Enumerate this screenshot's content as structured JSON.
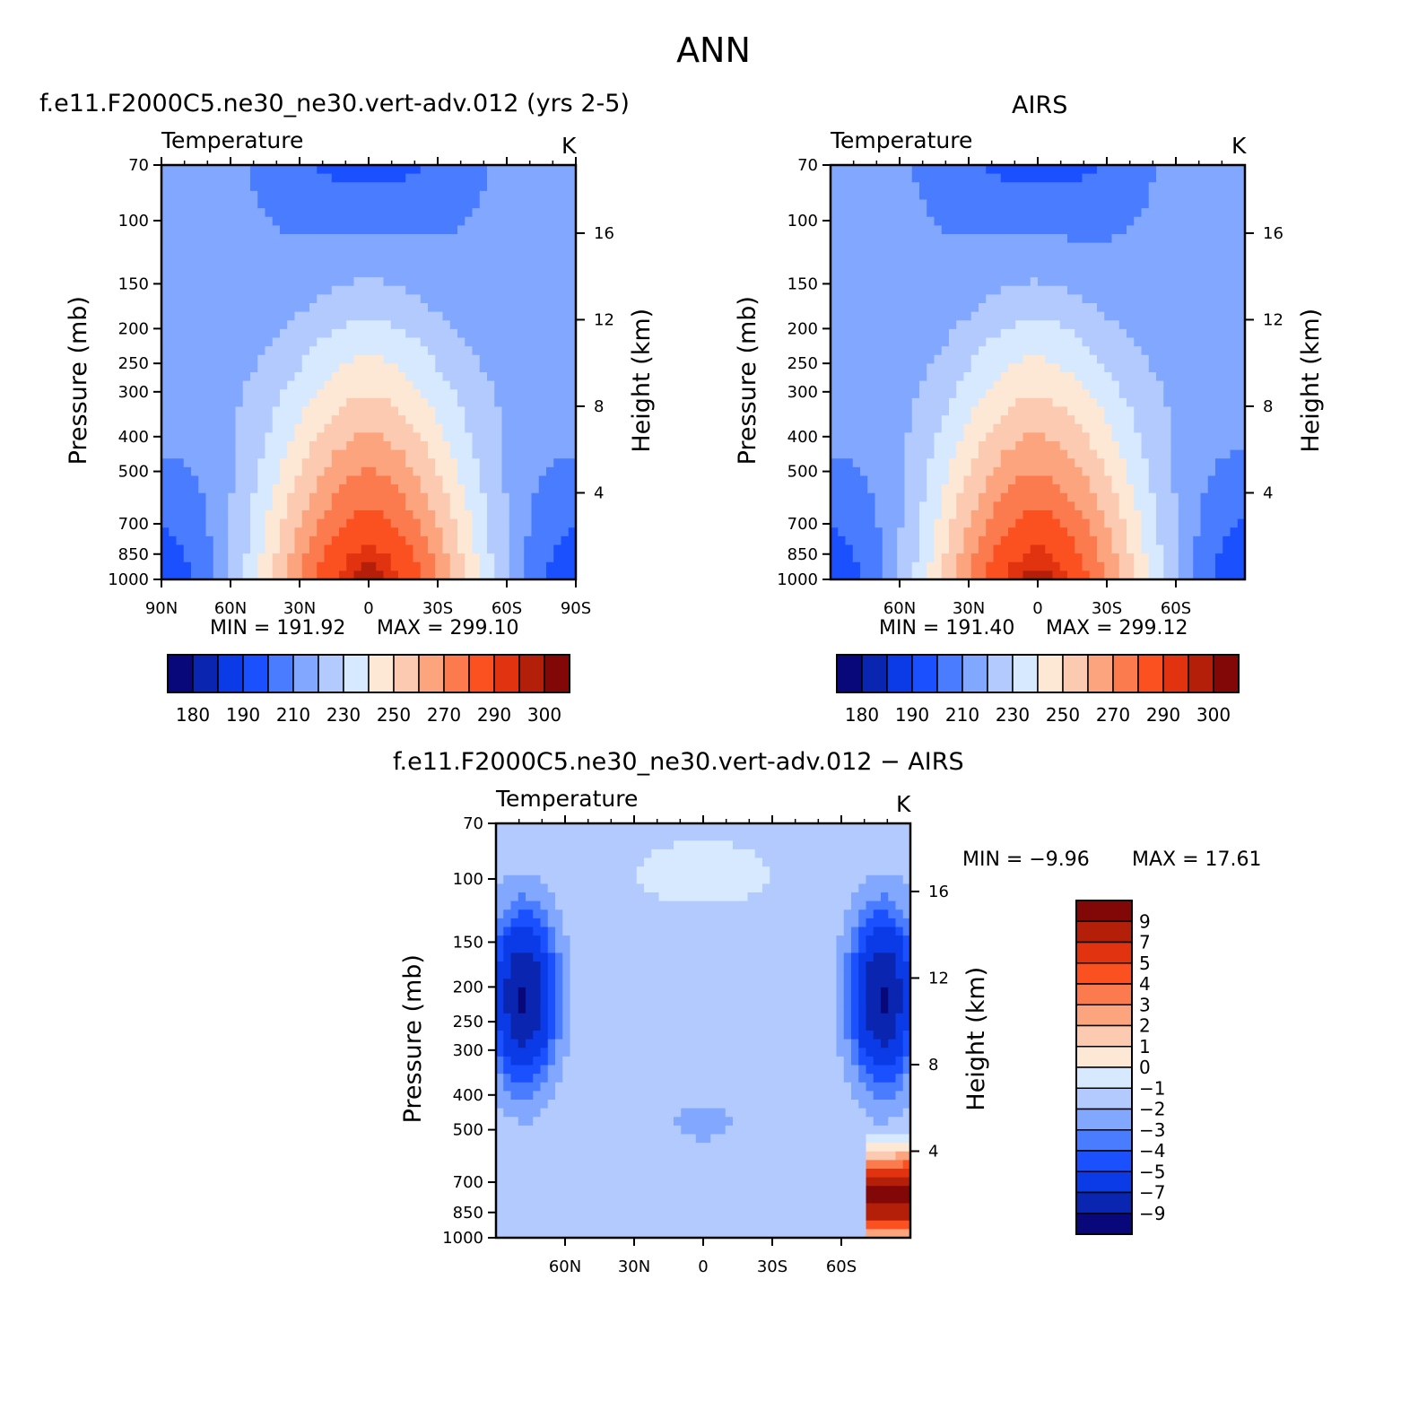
{
  "figure_title": "ANN",
  "colors": {
    "abs_levels": [
      "#08087a",
      "#0a25b0",
      "#0a3be6",
      "#1a50ff",
      "#4a7cff",
      "#82a7ff",
      "#b3caff",
      "#d7e9ff",
      "#fde7d5",
      "#fccab0",
      "#fca47e",
      "#fb7a4e",
      "#fb5020",
      "#e1330f",
      "#b41f0a",
      "#820707"
    ],
    "diff_levels": [
      "#08087a",
      "#0a25b0",
      "#0a3be6",
      "#1a50ff",
      "#4a7cff",
      "#82a7ff",
      "#b3caff",
      "#d7e9ff",
      "#fde7d5",
      "#fccab0",
      "#fca47e",
      "#fb7a4e",
      "#fb5020",
      "#e1330f",
      "#b41f0a",
      "#820707"
    ]
  },
  "chart_data": [
    {
      "type": "heatmap",
      "title": "f.e11.F2000C5.ne30_ne30.vert-adv.012 (yrs 2-5)",
      "subtitle": "Temperature",
      "units": "K",
      "ylabel": "Pressure (mb)",
      "y2label": "Height (km)",
      "x_ticks": [
        "90N",
        "60N",
        "30N",
        "0",
        "30S",
        "60S",
        "90S"
      ],
      "y_ticks": [
        70,
        100,
        150,
        200,
        250,
        300,
        400,
        500,
        700,
        850,
        1000
      ],
      "y2_ticks": [
        4,
        8,
        12,
        16
      ],
      "ylim": [
        1000,
        70
      ],
      "xlim": [
        90,
        -90
      ],
      "min_text": "MIN =  191.92",
      "max_text": "MAX =  299.10",
      "min": 191.92,
      "max": 299.1,
      "colorbar_labels": [
        "180",
        "190",
        "210",
        "230",
        "250",
        "270",
        "290",
        "300"
      ]
    },
    {
      "type": "heatmap",
      "title": "AIRS",
      "subtitle": "Temperature",
      "units": "K",
      "ylabel": "Pressure (mb)",
      "y2label": "Height (km)",
      "x_ticks": [
        "60N",
        "30N",
        "0",
        "30S",
        "60S"
      ],
      "y_ticks": [
        70,
        100,
        150,
        200,
        250,
        300,
        400,
        500,
        700,
        850,
        1000
      ],
      "y2_ticks": [
        4,
        8,
        12,
        16
      ],
      "ylim": [
        1000,
        70
      ],
      "xlim": [
        90,
        -90
      ],
      "min_text": "MIN =  191.40",
      "max_text": "MAX =  299.12",
      "min": 191.4,
      "max": 299.12,
      "colorbar_labels": [
        "180",
        "190",
        "210",
        "230",
        "250",
        "270",
        "290",
        "300"
      ]
    },
    {
      "type": "heatmap",
      "title": "f.e11.F2000C5.ne30_ne30.vert-adv.012 − AIRS",
      "subtitle": "Temperature",
      "units": "K",
      "ylabel": "Pressure (mb)",
      "y2label": "Height (km)",
      "x_ticks": [
        "60N",
        "30N",
        "0",
        "30S",
        "60S"
      ],
      "y_ticks": [
        70,
        100,
        150,
        200,
        250,
        300,
        400,
        500,
        700,
        850,
        1000
      ],
      "y2_ticks": [
        4,
        8,
        12,
        16
      ],
      "ylim": [
        1000,
        70
      ],
      "xlim": [
        90,
        -90
      ],
      "min_text": "MIN =   −9.96",
      "max_text": "MAX =   17.61",
      "min": -9.96,
      "max": 17.61,
      "colorbar_labels": [
        "9",
        "7",
        "5",
        "4",
        "3",
        "2",
        "1",
        "0",
        "−1",
        "−2",
        "−3",
        "−4",
        "−5",
        "−7",
        "−9"
      ]
    }
  ]
}
